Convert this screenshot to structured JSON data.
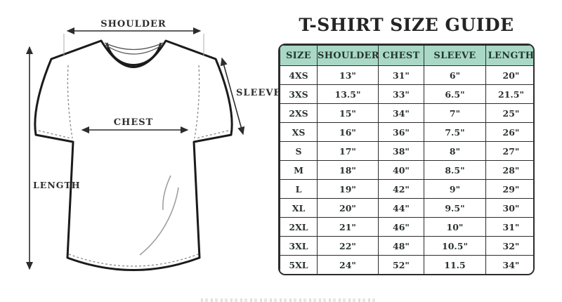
{
  "title": "T-SHIRT SIZE GUIDE",
  "diagram": {
    "labels": {
      "shoulder": "SHOULDER",
      "sleeve": "SLEEVE",
      "chest": "CHEST",
      "length": "LENGTH"
    }
  },
  "table": {
    "columns": [
      "SIZE",
      "SHOULDER",
      "CHEST",
      "SLEEVE",
      "LENGTH"
    ],
    "rows": [
      [
        "4XS",
        "13\"",
        "31\"",
        "6\"",
        "20\""
      ],
      [
        "3XS",
        "13.5\"",
        "33\"",
        "6.5\"",
        "21.5\""
      ],
      [
        "2XS",
        "15\"",
        "34\"",
        "7\"",
        "25\""
      ],
      [
        "XS",
        "16\"",
        "36\"",
        "7.5\"",
        "26\""
      ],
      [
        "S",
        "17\"",
        "38\"",
        "8\"",
        "27\""
      ],
      [
        "M",
        "18\"",
        "40\"",
        "8.5\"",
        "28\""
      ],
      [
        "L",
        "19\"",
        "42\"",
        "9\"",
        "29\""
      ],
      [
        "XL",
        "20\"",
        "44\"",
        "9.5\"",
        "30\""
      ],
      [
        "2XL",
        "21\"",
        "46\"",
        "10\"",
        "31\""
      ],
      [
        "3XL",
        "22\"",
        "48\"",
        "10.5\"",
        "32\""
      ],
      [
        "5XL",
        "24\"",
        "52\"",
        "11.5",
        "34\""
      ]
    ]
  },
  "colors": {
    "header_bg": "#a9d9c6",
    "grid_border": "#2c2c2c",
    "text": "#2b332f",
    "title": "#242424"
  }
}
